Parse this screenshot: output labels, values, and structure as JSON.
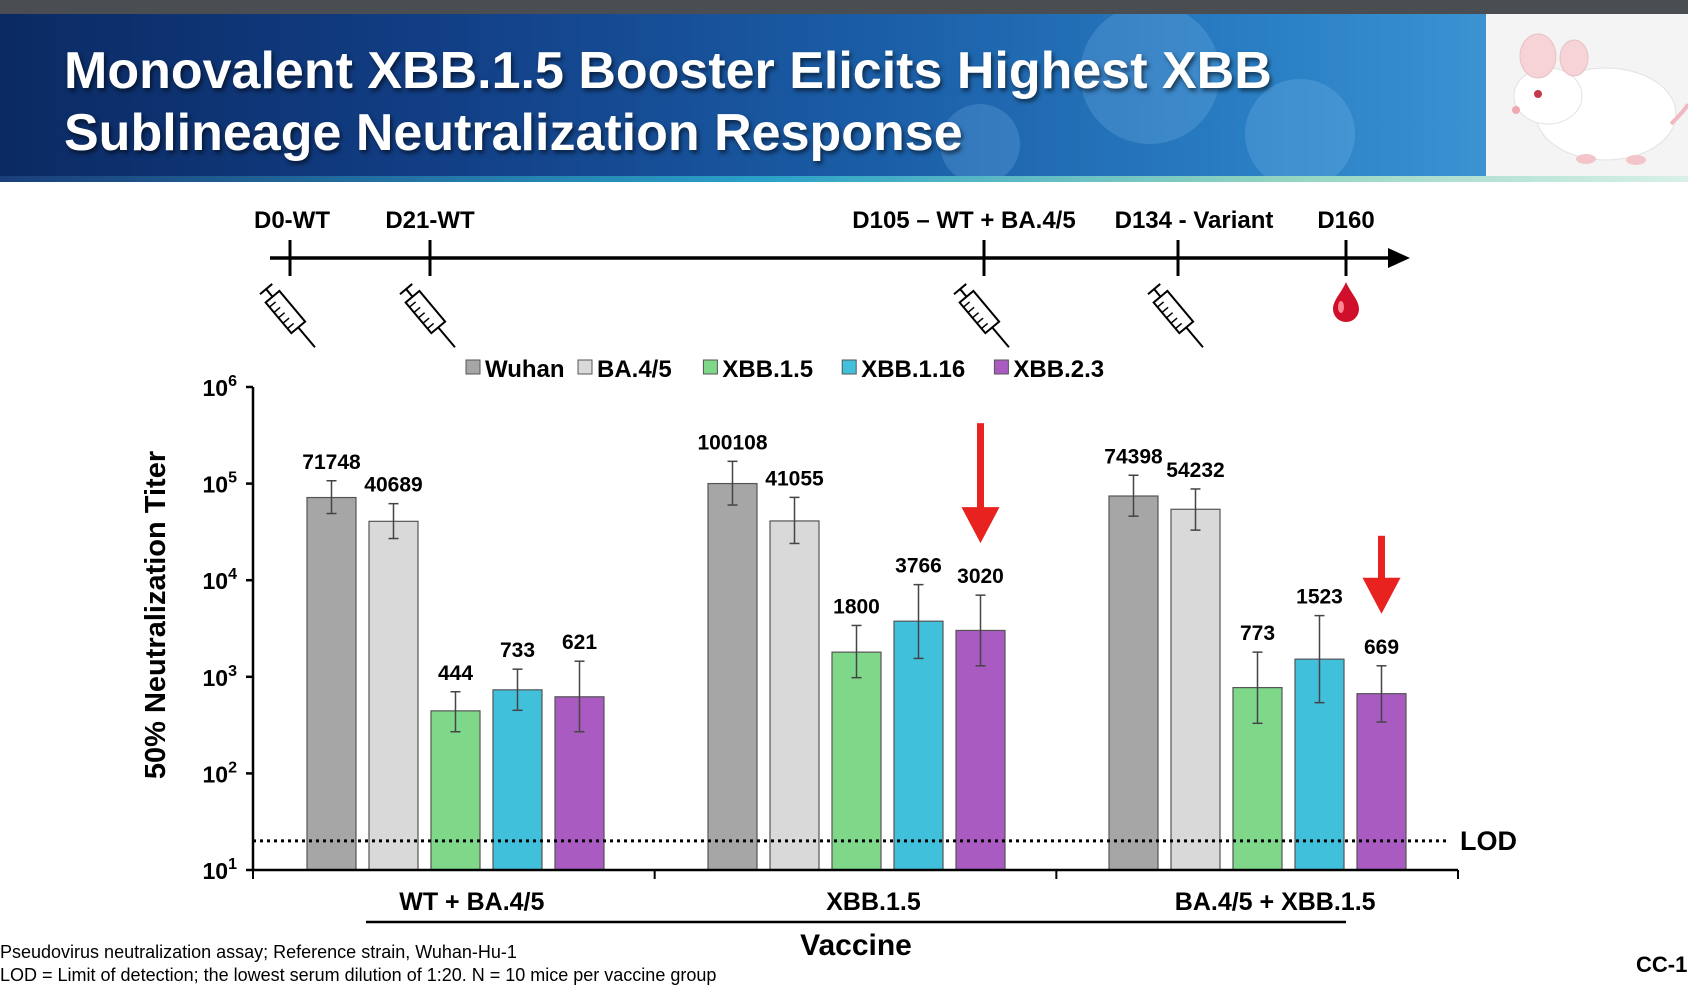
{
  "slide": {
    "title_line1": "Monovalent XBB.1.5 Booster Elicits Highest XBB",
    "title_line2": "Sublineage Neutralization Response",
    "footnote1": "Pseudovirus neutralization assay; Reference strain, Wuhan-Hu-1",
    "footnote2": "LOD = Limit of detection; the lowest serum dilution of 1:20. N = 10 mice per vaccine group",
    "slide_number": "CC-1",
    "image_icon": "white-mouse-photo"
  },
  "timeline": {
    "events": [
      {
        "label": "D0-WT",
        "icon": "syringe-icon"
      },
      {
        "label": "D21-WT",
        "icon": "syringe-icon"
      },
      {
        "label": "D105 – WT + BA.4/5",
        "icon": "syringe-icon"
      },
      {
        "label": "D134 - Variant",
        "icon": "syringe-icon"
      },
      {
        "label": "D160",
        "icon": "blood-drop-icon"
      }
    ]
  },
  "chart_data": {
    "type": "bar",
    "ylabel": "50% Neutralization Titer",
    "xlabel": "Vaccine",
    "yscale": "log",
    "ylim": [
      10,
      1000000
    ],
    "y_ticks": [
      {
        "base": "10",
        "exp": "1"
      },
      {
        "base": "10",
        "exp": "2"
      },
      {
        "base": "10",
        "exp": "3"
      },
      {
        "base": "10",
        "exp": "4"
      },
      {
        "base": "10",
        "exp": "5"
      },
      {
        "base": "10",
        "exp": "6"
      }
    ],
    "categories": [
      "WT + BA.4/5",
      "XBB.1.5",
      "BA.4/5 + XBB.1.5"
    ],
    "legend_position": "top",
    "lod": {
      "value": 20,
      "label": "LOD"
    },
    "series": [
      {
        "name": "Wuhan",
        "color": "#a6a6a6",
        "values": [
          71748,
          100108,
          74398
        ],
        "err_low": [
          49000,
          60000,
          46000
        ],
        "err_high": [
          107000,
          170000,
          122000
        ]
      },
      {
        "name": "BA.4/5",
        "color": "#d9d9d9",
        "values": [
          40689,
          41055,
          54232
        ],
        "err_low": [
          27000,
          24000,
          33000
        ],
        "err_high": [
          62000,
          72000,
          88000
        ]
      },
      {
        "name": "XBB.1.5",
        "color": "#7fd88a",
        "values": [
          444,
          1800,
          773
        ],
        "err_low": [
          270,
          980,
          330
        ],
        "err_high": [
          700,
          3400,
          1800
        ]
      },
      {
        "name": "XBB.1.16",
        "color": "#41c0dc",
        "values": [
          733,
          3766,
          1523
        ],
        "err_low": [
          450,
          1550,
          540
        ],
        "err_high": [
          1200,
          9000,
          4300
        ]
      },
      {
        "name": "XBB.2.3",
        "color": "#a95bc2",
        "values": [
          621,
          3020,
          669
        ],
        "err_low": [
          270,
          1300,
          340
        ],
        "err_high": [
          1450,
          7000,
          1300
        ]
      }
    ],
    "annotations": [
      {
        "type": "arrow",
        "color": "#e8231f",
        "points_to": {
          "category": "XBB.1.5",
          "series": "XBB.2.3"
        }
      },
      {
        "type": "arrow",
        "color": "#e8231f",
        "points_to": {
          "category": "BA.4/5 + XBB.1.5",
          "series": "XBB.2.3"
        }
      }
    ]
  }
}
